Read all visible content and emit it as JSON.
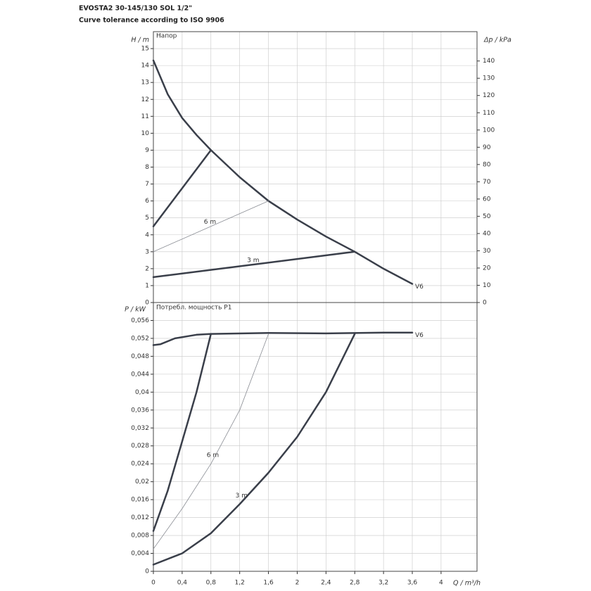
{
  "chart_data": [
    {
      "type": "line",
      "title": "EVOSTA2 30-145/130 SOL 1/2\"",
      "subtitle": "Curve tolerance according to ISO 9906",
      "panel_label": "Напор",
      "ylabel": "H / m",
      "y2label": "Δp / kPa",
      "xlim": [
        0,
        4.5
      ],
      "ylim": [
        0,
        16
      ],
      "yticks": [
        0,
        1,
        2,
        3,
        4,
        5,
        6,
        7,
        8,
        9,
        10,
        11,
        12,
        13,
        14,
        15
      ],
      "y2lim": [
        0,
        157
      ],
      "y2ticks": [
        0,
        10,
        20,
        30,
        40,
        50,
        60,
        70,
        80,
        90,
        100,
        110,
        120,
        130,
        140
      ],
      "grid": true,
      "series": [
        {
          "name": "V6",
          "color": "#3a3f4a",
          "linewidth": 2.5,
          "x": [
            0,
            0.2,
            0.4,
            0.6,
            0.8,
            1.2,
            1.6,
            2.0,
            2.4,
            2.8,
            3.2,
            3.6
          ],
          "values": [
            14.3,
            12.3,
            10.9,
            9.9,
            9.0,
            7.4,
            6.0,
            4.9,
            3.9,
            3.0,
            2.0,
            1.1
          ]
        },
        {
          "color": "#3a3f4a",
          "linewidth": 2.5,
          "x": [
            0,
            0.8
          ],
          "values": [
            4.5,
            9.0
          ]
        },
        {
          "name": "6 m",
          "color": "#8a8d94",
          "linewidth": 0.8,
          "x": [
            0,
            1.6
          ],
          "values": [
            3.0,
            6.0
          ]
        },
        {
          "name": "3 m",
          "color": "#3a3f4a",
          "linewidth": 2.5,
          "x": [
            0,
            2.8
          ],
          "values": [
            1.5,
            3.0
          ]
        }
      ]
    },
    {
      "type": "line",
      "panel_label": "Потребл. мощность P1",
      "ylabel": "P / kW",
      "xlabel": "Q / m³/h",
      "xlim": [
        0,
        4.5
      ],
      "ylim": [
        0,
        0.06
      ],
      "xticks": [
        0,
        {
          "value": 0.4,
          "label": "0,4"
        },
        {
          "value": 0.8,
          "label": "0,8"
        },
        {
          "value": 1.2,
          "label": "1,2"
        },
        {
          "value": 1.6,
          "label": "1,6"
        },
        2,
        {
          "value": 2.4,
          "label": "2,4"
        },
        {
          "value": 2.8,
          "label": "2,8"
        },
        {
          "value": 3.2,
          "label": "3,2"
        },
        {
          "value": 3.6,
          "label": "3,6"
        },
        4
      ],
      "yticks": [
        0,
        {
          "value": 0.004,
          "label": "0,004"
        },
        {
          "value": 0.008,
          "label": "0,008"
        },
        {
          "value": 0.012,
          "label": "0,012"
        },
        {
          "value": 0.016,
          "label": "0,016"
        },
        {
          "value": 0.02,
          "label": "0,02"
        },
        {
          "value": 0.024,
          "label": "0,024"
        },
        {
          "value": 0.028,
          "label": "0,028"
        },
        {
          "value": 0.032,
          "label": "0,032"
        },
        {
          "value": 0.036,
          "label": "0,036"
        },
        {
          "value": 0.04,
          "label": "0,04"
        },
        {
          "value": 0.044,
          "label": "0,044"
        },
        {
          "value": 0.048,
          "label": "0,048"
        },
        {
          "value": 0.052,
          "label": "0,052"
        },
        {
          "value": 0.056,
          "label": "0,056"
        }
      ],
      "grid": true,
      "series": [
        {
          "name": "V6",
          "color": "#3a3f4a",
          "linewidth": 2.5,
          "x": [
            0,
            0.1,
            0.3,
            0.6,
            0.8,
            1.6,
            2.4,
            3.2,
            3.6
          ],
          "values": [
            0.0505,
            0.0507,
            0.052,
            0.0528,
            0.053,
            0.0532,
            0.0531,
            0.0533,
            0.0533
          ]
        },
        {
          "color": "#3a3f4a",
          "linewidth": 2.5,
          "x": [
            0,
            0.2,
            0.4,
            0.6,
            0.8
          ],
          "values": [
            0.009,
            0.018,
            0.029,
            0.04,
            0.053
          ]
        },
        {
          "name": "6 m",
          "color": "#8a8d94",
          "linewidth": 0.8,
          "x": [
            0,
            0.4,
            0.8,
            1.2,
            1.6
          ],
          "values": [
            0.005,
            0.014,
            0.024,
            0.036,
            0.053
          ]
        },
        {
          "name": "3 m",
          "color": "#3a3f4a",
          "linewidth": 2.5,
          "x": [
            0,
            0.4,
            0.8,
            1.2,
            1.6,
            2.0,
            2.4,
            2.8
          ],
          "values": [
            0.0015,
            0.004,
            0.0085,
            0.015,
            0.022,
            0.03,
            0.04,
            0.053
          ]
        }
      ]
    }
  ]
}
